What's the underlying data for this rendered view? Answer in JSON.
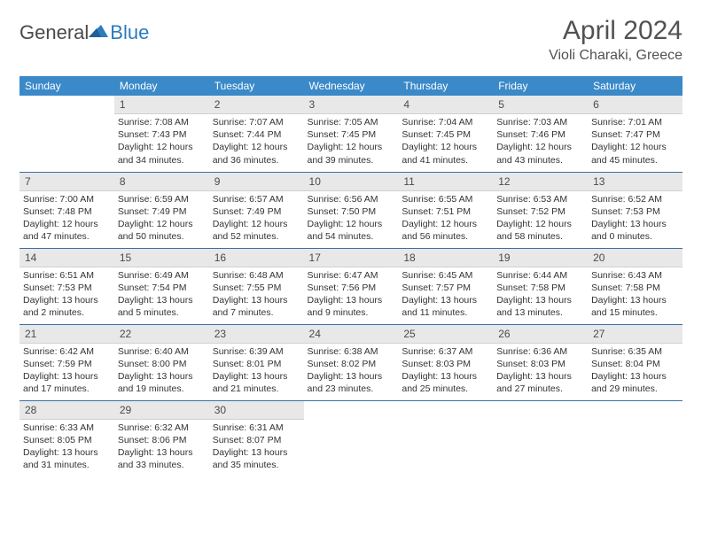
{
  "logo": {
    "general": "General",
    "blue": "Blue"
  },
  "title": "April 2024",
  "location": "Violi Charaki, Greece",
  "colors": {
    "header_bg": "#3a89c9",
    "header_text": "#ffffff",
    "daynum_bg": "#e8e8e8",
    "week_border": "#3a6ea5",
    "logo_blue": "#2b7bbf",
    "text": "#333333"
  },
  "dayHeaders": [
    "Sunday",
    "Monday",
    "Tuesday",
    "Wednesday",
    "Thursday",
    "Friday",
    "Saturday"
  ],
  "weeks": [
    [
      null,
      {
        "n": "1",
        "sr": "7:08 AM",
        "ss": "7:43 PM",
        "dl": "12 hours and 34 minutes."
      },
      {
        "n": "2",
        "sr": "7:07 AM",
        "ss": "7:44 PM",
        "dl": "12 hours and 36 minutes."
      },
      {
        "n": "3",
        "sr": "7:05 AM",
        "ss": "7:45 PM",
        "dl": "12 hours and 39 minutes."
      },
      {
        "n": "4",
        "sr": "7:04 AM",
        "ss": "7:45 PM",
        "dl": "12 hours and 41 minutes."
      },
      {
        "n": "5",
        "sr": "7:03 AM",
        "ss": "7:46 PM",
        "dl": "12 hours and 43 minutes."
      },
      {
        "n": "6",
        "sr": "7:01 AM",
        "ss": "7:47 PM",
        "dl": "12 hours and 45 minutes."
      }
    ],
    [
      {
        "n": "7",
        "sr": "7:00 AM",
        "ss": "7:48 PM",
        "dl": "12 hours and 47 minutes."
      },
      {
        "n": "8",
        "sr": "6:59 AM",
        "ss": "7:49 PM",
        "dl": "12 hours and 50 minutes."
      },
      {
        "n": "9",
        "sr": "6:57 AM",
        "ss": "7:49 PM",
        "dl": "12 hours and 52 minutes."
      },
      {
        "n": "10",
        "sr": "6:56 AM",
        "ss": "7:50 PM",
        "dl": "12 hours and 54 minutes."
      },
      {
        "n": "11",
        "sr": "6:55 AM",
        "ss": "7:51 PM",
        "dl": "12 hours and 56 minutes."
      },
      {
        "n": "12",
        "sr": "6:53 AM",
        "ss": "7:52 PM",
        "dl": "12 hours and 58 minutes."
      },
      {
        "n": "13",
        "sr": "6:52 AM",
        "ss": "7:53 PM",
        "dl": "13 hours and 0 minutes."
      }
    ],
    [
      {
        "n": "14",
        "sr": "6:51 AM",
        "ss": "7:53 PM",
        "dl": "13 hours and 2 minutes."
      },
      {
        "n": "15",
        "sr": "6:49 AM",
        "ss": "7:54 PM",
        "dl": "13 hours and 5 minutes."
      },
      {
        "n": "16",
        "sr": "6:48 AM",
        "ss": "7:55 PM",
        "dl": "13 hours and 7 minutes."
      },
      {
        "n": "17",
        "sr": "6:47 AM",
        "ss": "7:56 PM",
        "dl": "13 hours and 9 minutes."
      },
      {
        "n": "18",
        "sr": "6:45 AM",
        "ss": "7:57 PM",
        "dl": "13 hours and 11 minutes."
      },
      {
        "n": "19",
        "sr": "6:44 AM",
        "ss": "7:58 PM",
        "dl": "13 hours and 13 minutes."
      },
      {
        "n": "20",
        "sr": "6:43 AM",
        "ss": "7:58 PM",
        "dl": "13 hours and 15 minutes."
      }
    ],
    [
      {
        "n": "21",
        "sr": "6:42 AM",
        "ss": "7:59 PM",
        "dl": "13 hours and 17 minutes."
      },
      {
        "n": "22",
        "sr": "6:40 AM",
        "ss": "8:00 PM",
        "dl": "13 hours and 19 minutes."
      },
      {
        "n": "23",
        "sr": "6:39 AM",
        "ss": "8:01 PM",
        "dl": "13 hours and 21 minutes."
      },
      {
        "n": "24",
        "sr": "6:38 AM",
        "ss": "8:02 PM",
        "dl": "13 hours and 23 minutes."
      },
      {
        "n": "25",
        "sr": "6:37 AM",
        "ss": "8:03 PM",
        "dl": "13 hours and 25 minutes."
      },
      {
        "n": "26",
        "sr": "6:36 AM",
        "ss": "8:03 PM",
        "dl": "13 hours and 27 minutes."
      },
      {
        "n": "27",
        "sr": "6:35 AM",
        "ss": "8:04 PM",
        "dl": "13 hours and 29 minutes."
      }
    ],
    [
      {
        "n": "28",
        "sr": "6:33 AM",
        "ss": "8:05 PM",
        "dl": "13 hours and 31 minutes."
      },
      {
        "n": "29",
        "sr": "6:32 AM",
        "ss": "8:06 PM",
        "dl": "13 hours and 33 minutes."
      },
      {
        "n": "30",
        "sr": "6:31 AM",
        "ss": "8:07 PM",
        "dl": "13 hours and 35 minutes."
      },
      null,
      null,
      null,
      null
    ]
  ],
  "labels": {
    "sunrise": "Sunrise:",
    "sunset": "Sunset:",
    "daylight": "Daylight:"
  }
}
